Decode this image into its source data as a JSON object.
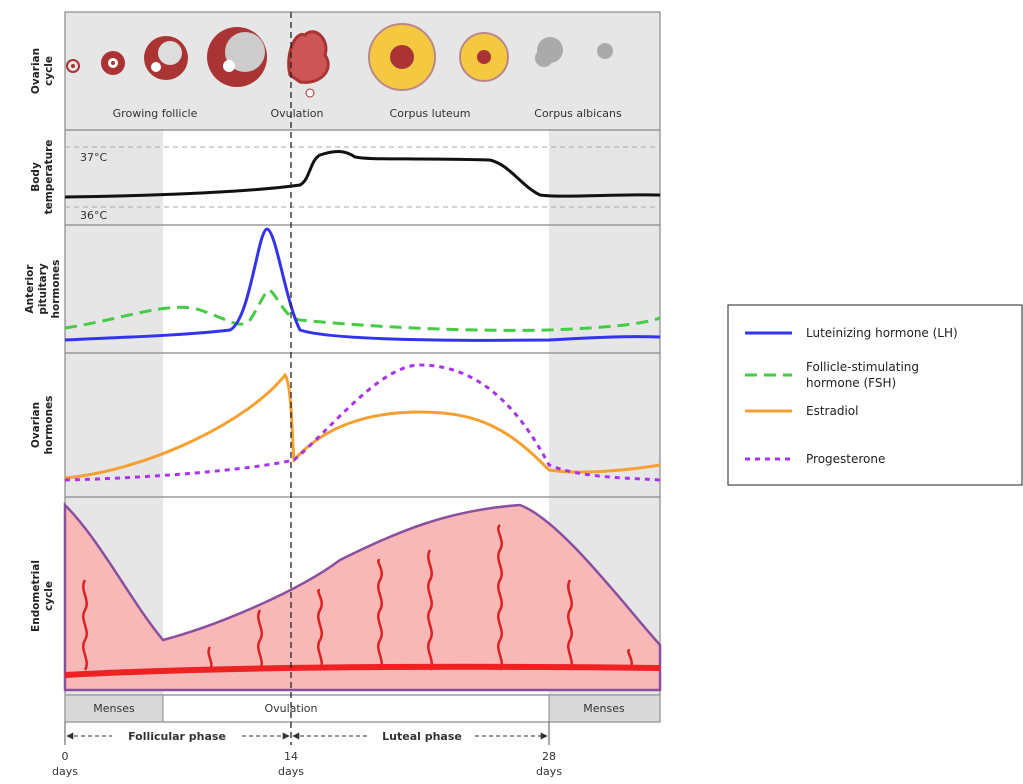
{
  "row_labels": [
    [
      "Ovarian",
      "cycle"
    ],
    [
      "Body",
      "temperature"
    ],
    [
      "Anterior",
      "pituitary",
      "hormones"
    ],
    [
      "Ovarian",
      "hormones"
    ],
    [
      "Endometrial",
      "cycle"
    ]
  ],
  "ovarian_stages": [
    "Growing follicle",
    "Ovulation",
    "Corpus luteum",
    "Corpus albicans"
  ],
  "temperature_marks": [
    "37°C",
    "36°C"
  ],
  "bottom_bar": [
    "Menses",
    "Ovulation",
    "Menses"
  ],
  "phases": [
    "Follicular phase",
    "Luteal phase"
  ],
  "days": [
    {
      "number": "0",
      "unit": "days"
    },
    {
      "number": "14",
      "unit": "days"
    },
    {
      "number": "28",
      "unit": "days"
    }
  ],
  "legend": [
    {
      "lines": [
        "Luteinizing hormone (LH)"
      ]
    },
    {
      "lines": [
        "Follicle-stimulating",
        "hormone (FSH)"
      ]
    },
    {
      "lines": [
        "Estradiol"
      ]
    },
    {
      "lines": [
        "Progesterone"
      ]
    }
  ]
}
